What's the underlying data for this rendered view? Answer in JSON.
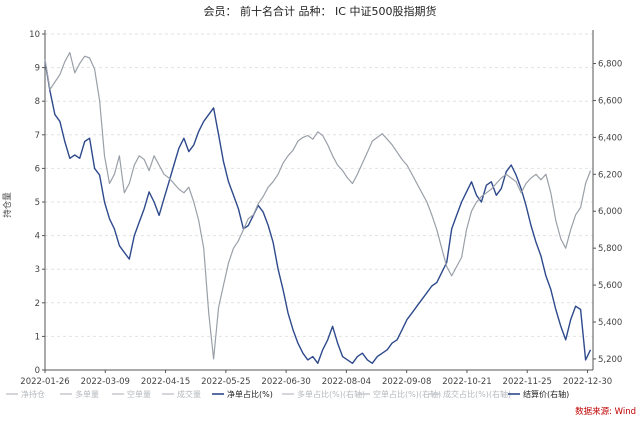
{
  "chart_data": {
    "type": "line",
    "title": "会员：  前十名合计  品种：  IC 中证500股指期货",
    "ylabel": "持仓量",
    "x_ticks": [
      "2022-01-26",
      "2022-03-09",
      "2022-04-15",
      "2022-05-25",
      "2022-06-30",
      "2022-08-04",
      "2022-09-08",
      "2022-10-21",
      "2022-11-25",
      "2022-12-30"
    ],
    "y_left": {
      "ticks": [
        "0",
        "1",
        "2",
        "3",
        "4",
        "5",
        "6",
        "7",
        "8",
        "9",
        "10"
      ],
      "range": [
        0,
        10
      ]
    },
    "y_right": {
      "ticks": [
        "5,200",
        "5,400",
        "5,600",
        "5,800",
        "6,000",
        "6,200",
        "6,400",
        "6,600",
        "6,800"
      ],
      "range": [
        5140,
        6960
      ]
    },
    "x_range": [
      0,
      221
    ],
    "legend": {
      "placement": "bottom",
      "entries": [
        "净持仓",
        "多单量",
        "空单量",
        "成交量",
        "净单占比(%)",
        "多单占比(%)(右轴)",
        "空单占比(%)(右轴)",
        "成交占比(%)(右轴)",
        "结算价(右轴)"
      ]
    },
    "source": "数据来源: Wind",
    "series": [
      {
        "name": "净单占比(%)",
        "axis": "left",
        "color": "#2e4a8c",
        "points": [
          [
            0,
            9.2
          ],
          [
            2,
            8.3
          ],
          [
            4,
            7.6
          ],
          [
            6,
            7.4
          ],
          [
            8,
            6.8
          ],
          [
            10,
            6.3
          ],
          [
            12,
            6.4
          ],
          [
            14,
            6.3
          ],
          [
            16,
            6.8
          ],
          [
            18,
            6.9
          ],
          [
            20,
            6.0
          ],
          [
            22,
            5.8
          ],
          [
            24,
            5.0
          ],
          [
            26,
            4.5
          ],
          [
            28,
            4.2
          ],
          [
            30,
            3.7
          ],
          [
            32,
            3.5
          ],
          [
            34,
            3.3
          ],
          [
            36,
            4.0
          ],
          [
            38,
            4.4
          ],
          [
            40,
            4.8
          ],
          [
            42,
            5.3
          ],
          [
            44,
            5.0
          ],
          [
            46,
            4.6
          ],
          [
            48,
            5.1
          ],
          [
            50,
            5.6
          ],
          [
            52,
            6.1
          ],
          [
            54,
            6.6
          ],
          [
            56,
            6.9
          ],
          [
            58,
            6.5
          ],
          [
            60,
            6.7
          ],
          [
            62,
            7.1
          ],
          [
            64,
            7.4
          ],
          [
            66,
            7.6
          ],
          [
            68,
            7.8
          ],
          [
            70,
            7.0
          ],
          [
            72,
            6.2
          ],
          [
            74,
            5.6
          ],
          [
            76,
            5.2
          ],
          [
            78,
            4.8
          ],
          [
            80,
            4.2
          ],
          [
            82,
            4.3
          ],
          [
            84,
            4.6
          ],
          [
            86,
            4.9
          ],
          [
            88,
            4.7
          ],
          [
            90,
            4.3
          ],
          [
            92,
            3.8
          ],
          [
            94,
            3.0
          ],
          [
            96,
            2.4
          ],
          [
            98,
            1.7
          ],
          [
            100,
            1.2
          ],
          [
            102,
            0.8
          ],
          [
            104,
            0.5
          ],
          [
            106,
            0.3
          ],
          [
            108,
            0.4
          ],
          [
            110,
            0.2
          ],
          [
            112,
            0.6
          ],
          [
            114,
            0.9
          ],
          [
            116,
            1.3
          ],
          [
            118,
            0.8
          ],
          [
            120,
            0.4
          ],
          [
            122,
            0.3
          ],
          [
            124,
            0.2
          ],
          [
            126,
            0.4
          ],
          [
            128,
            0.5
          ],
          [
            130,
            0.3
          ],
          [
            132,
            0.2
          ],
          [
            134,
            0.4
          ],
          [
            136,
            0.5
          ],
          [
            138,
            0.6
          ],
          [
            140,
            0.8
          ],
          [
            142,
            0.9
          ],
          [
            144,
            1.2
          ],
          [
            146,
            1.5
          ],
          [
            148,
            1.7
          ],
          [
            150,
            1.9
          ],
          [
            152,
            2.1
          ],
          [
            154,
            2.3
          ],
          [
            156,
            2.5
          ],
          [
            158,
            2.6
          ],
          [
            160,
            2.9
          ],
          [
            162,
            3.2
          ],
          [
            164,
            4.2
          ],
          [
            166,
            4.6
          ],
          [
            168,
            5.0
          ],
          [
            170,
            5.3
          ],
          [
            172,
            5.6
          ],
          [
            174,
            5.2
          ],
          [
            176,
            5.0
          ],
          [
            178,
            5.5
          ],
          [
            180,
            5.6
          ],
          [
            182,
            5.2
          ],
          [
            184,
            5.4
          ],
          [
            186,
            5.9
          ],
          [
            188,
            6.1
          ],
          [
            190,
            5.8
          ],
          [
            192,
            5.4
          ],
          [
            194,
            4.9
          ],
          [
            196,
            4.3
          ],
          [
            198,
            3.8
          ],
          [
            200,
            3.4
          ],
          [
            202,
            2.8
          ],
          [
            204,
            2.4
          ],
          [
            206,
            1.8
          ],
          [
            208,
            1.3
          ],
          [
            210,
            0.9
          ],
          [
            212,
            1.5
          ],
          [
            214,
            1.9
          ],
          [
            216,
            1.8
          ],
          [
            218,
            0.3
          ],
          [
            220,
            0.6
          ]
        ]
      },
      {
        "name": "结算价(右轴)",
        "axis": "right",
        "color": "#9aa0a8",
        "points": [
          [
            0,
            6820
          ],
          [
            2,
            6660
          ],
          [
            4,
            6700
          ],
          [
            6,
            6740
          ],
          [
            8,
            6810
          ],
          [
            10,
            6860
          ],
          [
            12,
            6750
          ],
          [
            14,
            6800
          ],
          [
            16,
            6840
          ],
          [
            18,
            6830
          ],
          [
            20,
            6770
          ],
          [
            22,
            6600
          ],
          [
            24,
            6300
          ],
          [
            26,
            6150
          ],
          [
            28,
            6200
          ],
          [
            30,
            6300
          ],
          [
            32,
            6100
          ],
          [
            34,
            6150
          ],
          [
            36,
            6250
          ],
          [
            38,
            6300
          ],
          [
            40,
            6280
          ],
          [
            42,
            6220
          ],
          [
            44,
            6300
          ],
          [
            46,
            6250
          ],
          [
            48,
            6200
          ],
          [
            50,
            6180
          ],
          [
            52,
            6150
          ],
          [
            54,
            6120
          ],
          [
            56,
            6100
          ],
          [
            58,
            6130
          ],
          [
            60,
            6050
          ],
          [
            62,
            5950
          ],
          [
            64,
            5800
          ],
          [
            66,
            5450
          ],
          [
            68,
            5200
          ],
          [
            70,
            5480
          ],
          [
            72,
            5600
          ],
          [
            74,
            5720
          ],
          [
            76,
            5800
          ],
          [
            78,
            5840
          ],
          [
            80,
            5900
          ],
          [
            82,
            5960
          ],
          [
            84,
            5980
          ],
          [
            86,
            6040
          ],
          [
            88,
            6080
          ],
          [
            90,
            6130
          ],
          [
            92,
            6160
          ],
          [
            94,
            6200
          ],
          [
            96,
            6260
          ],
          [
            98,
            6300
          ],
          [
            100,
            6330
          ],
          [
            102,
            6380
          ],
          [
            104,
            6400
          ],
          [
            106,
            6410
          ],
          [
            108,
            6390
          ],
          [
            110,
            6430
          ],
          [
            112,
            6410
          ],
          [
            114,
            6360
          ],
          [
            116,
            6300
          ],
          [
            118,
            6250
          ],
          [
            120,
            6220
          ],
          [
            122,
            6180
          ],
          [
            124,
            6150
          ],
          [
            126,
            6200
          ],
          [
            128,
            6260
          ],
          [
            130,
            6320
          ],
          [
            132,
            6380
          ],
          [
            134,
            6400
          ],
          [
            136,
            6420
          ],
          [
            138,
            6390
          ],
          [
            140,
            6360
          ],
          [
            142,
            6320
          ],
          [
            144,
            6280
          ],
          [
            146,
            6250
          ],
          [
            148,
            6200
          ],
          [
            150,
            6150
          ],
          [
            152,
            6100
          ],
          [
            154,
            6050
          ],
          [
            156,
            5980
          ],
          [
            158,
            5900
          ],
          [
            160,
            5800
          ],
          [
            162,
            5700
          ],
          [
            164,
            5650
          ],
          [
            166,
            5700
          ],
          [
            168,
            5750
          ],
          [
            170,
            5900
          ],
          [
            172,
            6000
          ],
          [
            174,
            6050
          ],
          [
            176,
            6080
          ],
          [
            178,
            6100
          ],
          [
            180,
            6120
          ],
          [
            182,
            6150
          ],
          [
            184,
            6180
          ],
          [
            186,
            6200
          ],
          [
            188,
            6180
          ],
          [
            190,
            6160
          ],
          [
            192,
            6100
          ],
          [
            194,
            6150
          ],
          [
            196,
            6180
          ],
          [
            198,
            6200
          ],
          [
            200,
            6170
          ],
          [
            202,
            6200
          ],
          [
            204,
            6100
          ],
          [
            206,
            5950
          ],
          [
            208,
            5850
          ],
          [
            210,
            5800
          ],
          [
            212,
            5900
          ],
          [
            214,
            5980
          ],
          [
            216,
            6020
          ],
          [
            218,
            6150
          ],
          [
            220,
            6220
          ]
        ]
      }
    ]
  }
}
